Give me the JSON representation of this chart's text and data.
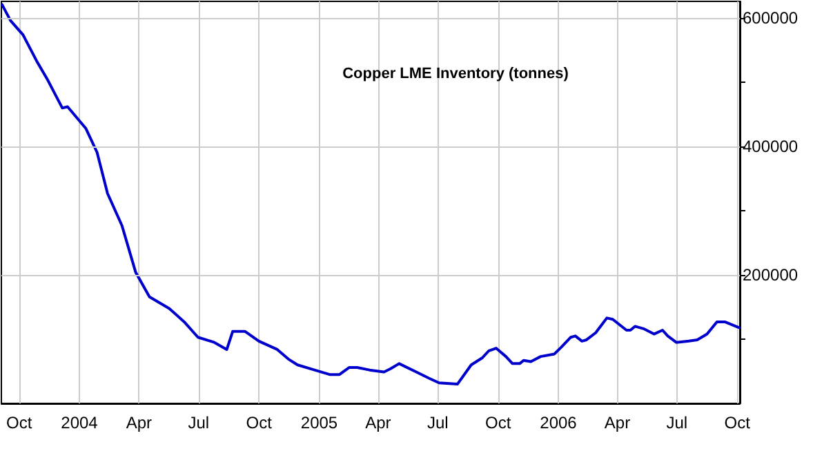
{
  "chart_data": {
    "type": "line",
    "title": "Copper LME Inventory (tonnes)",
    "x": [
      "2003-09-05",
      "2003-09-18",
      "2003-10-07",
      "2003-10-29",
      "2003-11-14",
      "2003-12-06",
      "2003-12-14",
      "2004-01-11",
      "2004-01-28",
      "2004-02-13",
      "2004-03-06",
      "2004-03-27",
      "2004-04-17",
      "2004-05-17",
      "2004-06-09",
      "2004-06-30",
      "2004-07-25",
      "2004-08-13",
      "2004-08-22",
      "2004-09-10",
      "2004-10-01",
      "2004-10-29",
      "2004-11-15",
      "2004-11-29",
      "2004-12-25",
      "2005-01-17",
      "2005-02-01",
      "2005-02-16",
      "2005-02-28",
      "2005-03-19",
      "2005-04-10",
      "2005-04-20",
      "2005-05-03",
      "2005-06-02",
      "2005-06-18",
      "2005-07-03",
      "2005-07-31",
      "2005-08-21",
      "2005-09-07",
      "2005-09-17",
      "2005-09-28",
      "2005-10-13",
      "2005-10-23",
      "2005-11-03",
      "2005-11-09",
      "2005-11-20",
      "2005-12-05",
      "2005-12-26",
      "2006-01-06",
      "2006-01-20",
      "2006-01-27",
      "2006-02-06",
      "2006-02-13",
      "2006-02-27",
      "2006-03-16",
      "2006-03-25",
      "2006-04-15",
      "2006-04-21",
      "2006-04-28",
      "2006-05-12",
      "2006-05-27",
      "2006-06-09",
      "2006-06-17",
      "2006-06-30",
      "2006-07-19",
      "2006-08-01",
      "2006-08-16",
      "2006-08-31",
      "2006-09-12",
      "2006-10-04"
    ],
    "series": [
      {
        "color": "#0000cc",
        "values": [
          621000,
          596000,
          574000,
          531000,
          503000,
          460000,
          462000,
          428000,
          391000,
          327000,
          277000,
          204000,
          166000,
          148000,
          127000,
          103000,
          95000,
          84000,
          112000,
          112000,
          97000,
          84000,
          69000,
          60000,
          52000,
          45000,
          45000,
          56000,
          56000,
          52000,
          49000,
          54000,
          62000,
          47000,
          39000,
          32000,
          30000,
          60000,
          71000,
          82000,
          86000,
          73000,
          62000,
          62000,
          67000,
          65000,
          73000,
          77000,
          88000,
          103000,
          105000,
          97000,
          99000,
          110000,
          133000,
          131000,
          114000,
          114000,
          120000,
          116000,
          108000,
          114000,
          105000,
          95000,
          97000,
          99000,
          108000,
          127000,
          127000,
          118000
        ]
      }
    ],
    "xlim": [
      "2003-09-04",
      "2006-10-05"
    ],
    "xticks": [
      {
        "value": "2003-10-01",
        "label": "Oct"
      },
      {
        "value": "2004-01-01",
        "label": "2004"
      },
      {
        "value": "2004-04-01",
        "label": "Apr"
      },
      {
        "value": "2004-07-01",
        "label": "Jul"
      },
      {
        "value": "2004-10-01",
        "label": "Oct"
      },
      {
        "value": "2005-01-01",
        "label": "2005"
      },
      {
        "value": "2005-04-01",
        "label": "Apr"
      },
      {
        "value": "2005-07-01",
        "label": "Jul"
      },
      {
        "value": "2005-10-01",
        "label": "Oct"
      },
      {
        "value": "2006-01-01",
        "label": "2006"
      },
      {
        "value": "2006-04-01",
        "label": "Apr"
      },
      {
        "value": "2006-07-01",
        "label": "Jul"
      },
      {
        "value": "2006-10-01",
        "label": "Oct"
      }
    ],
    "ylim": [
      0,
      626000
    ],
    "yticks": [
      {
        "value": 100000,
        "label": null
      },
      200000,
      {
        "value": 300000,
        "label": null
      },
      400000,
      {
        "value": 500000,
        "label": null
      },
      600000
    ],
    "grid": true,
    "marker": "none",
    "line_style": "solid"
  }
}
